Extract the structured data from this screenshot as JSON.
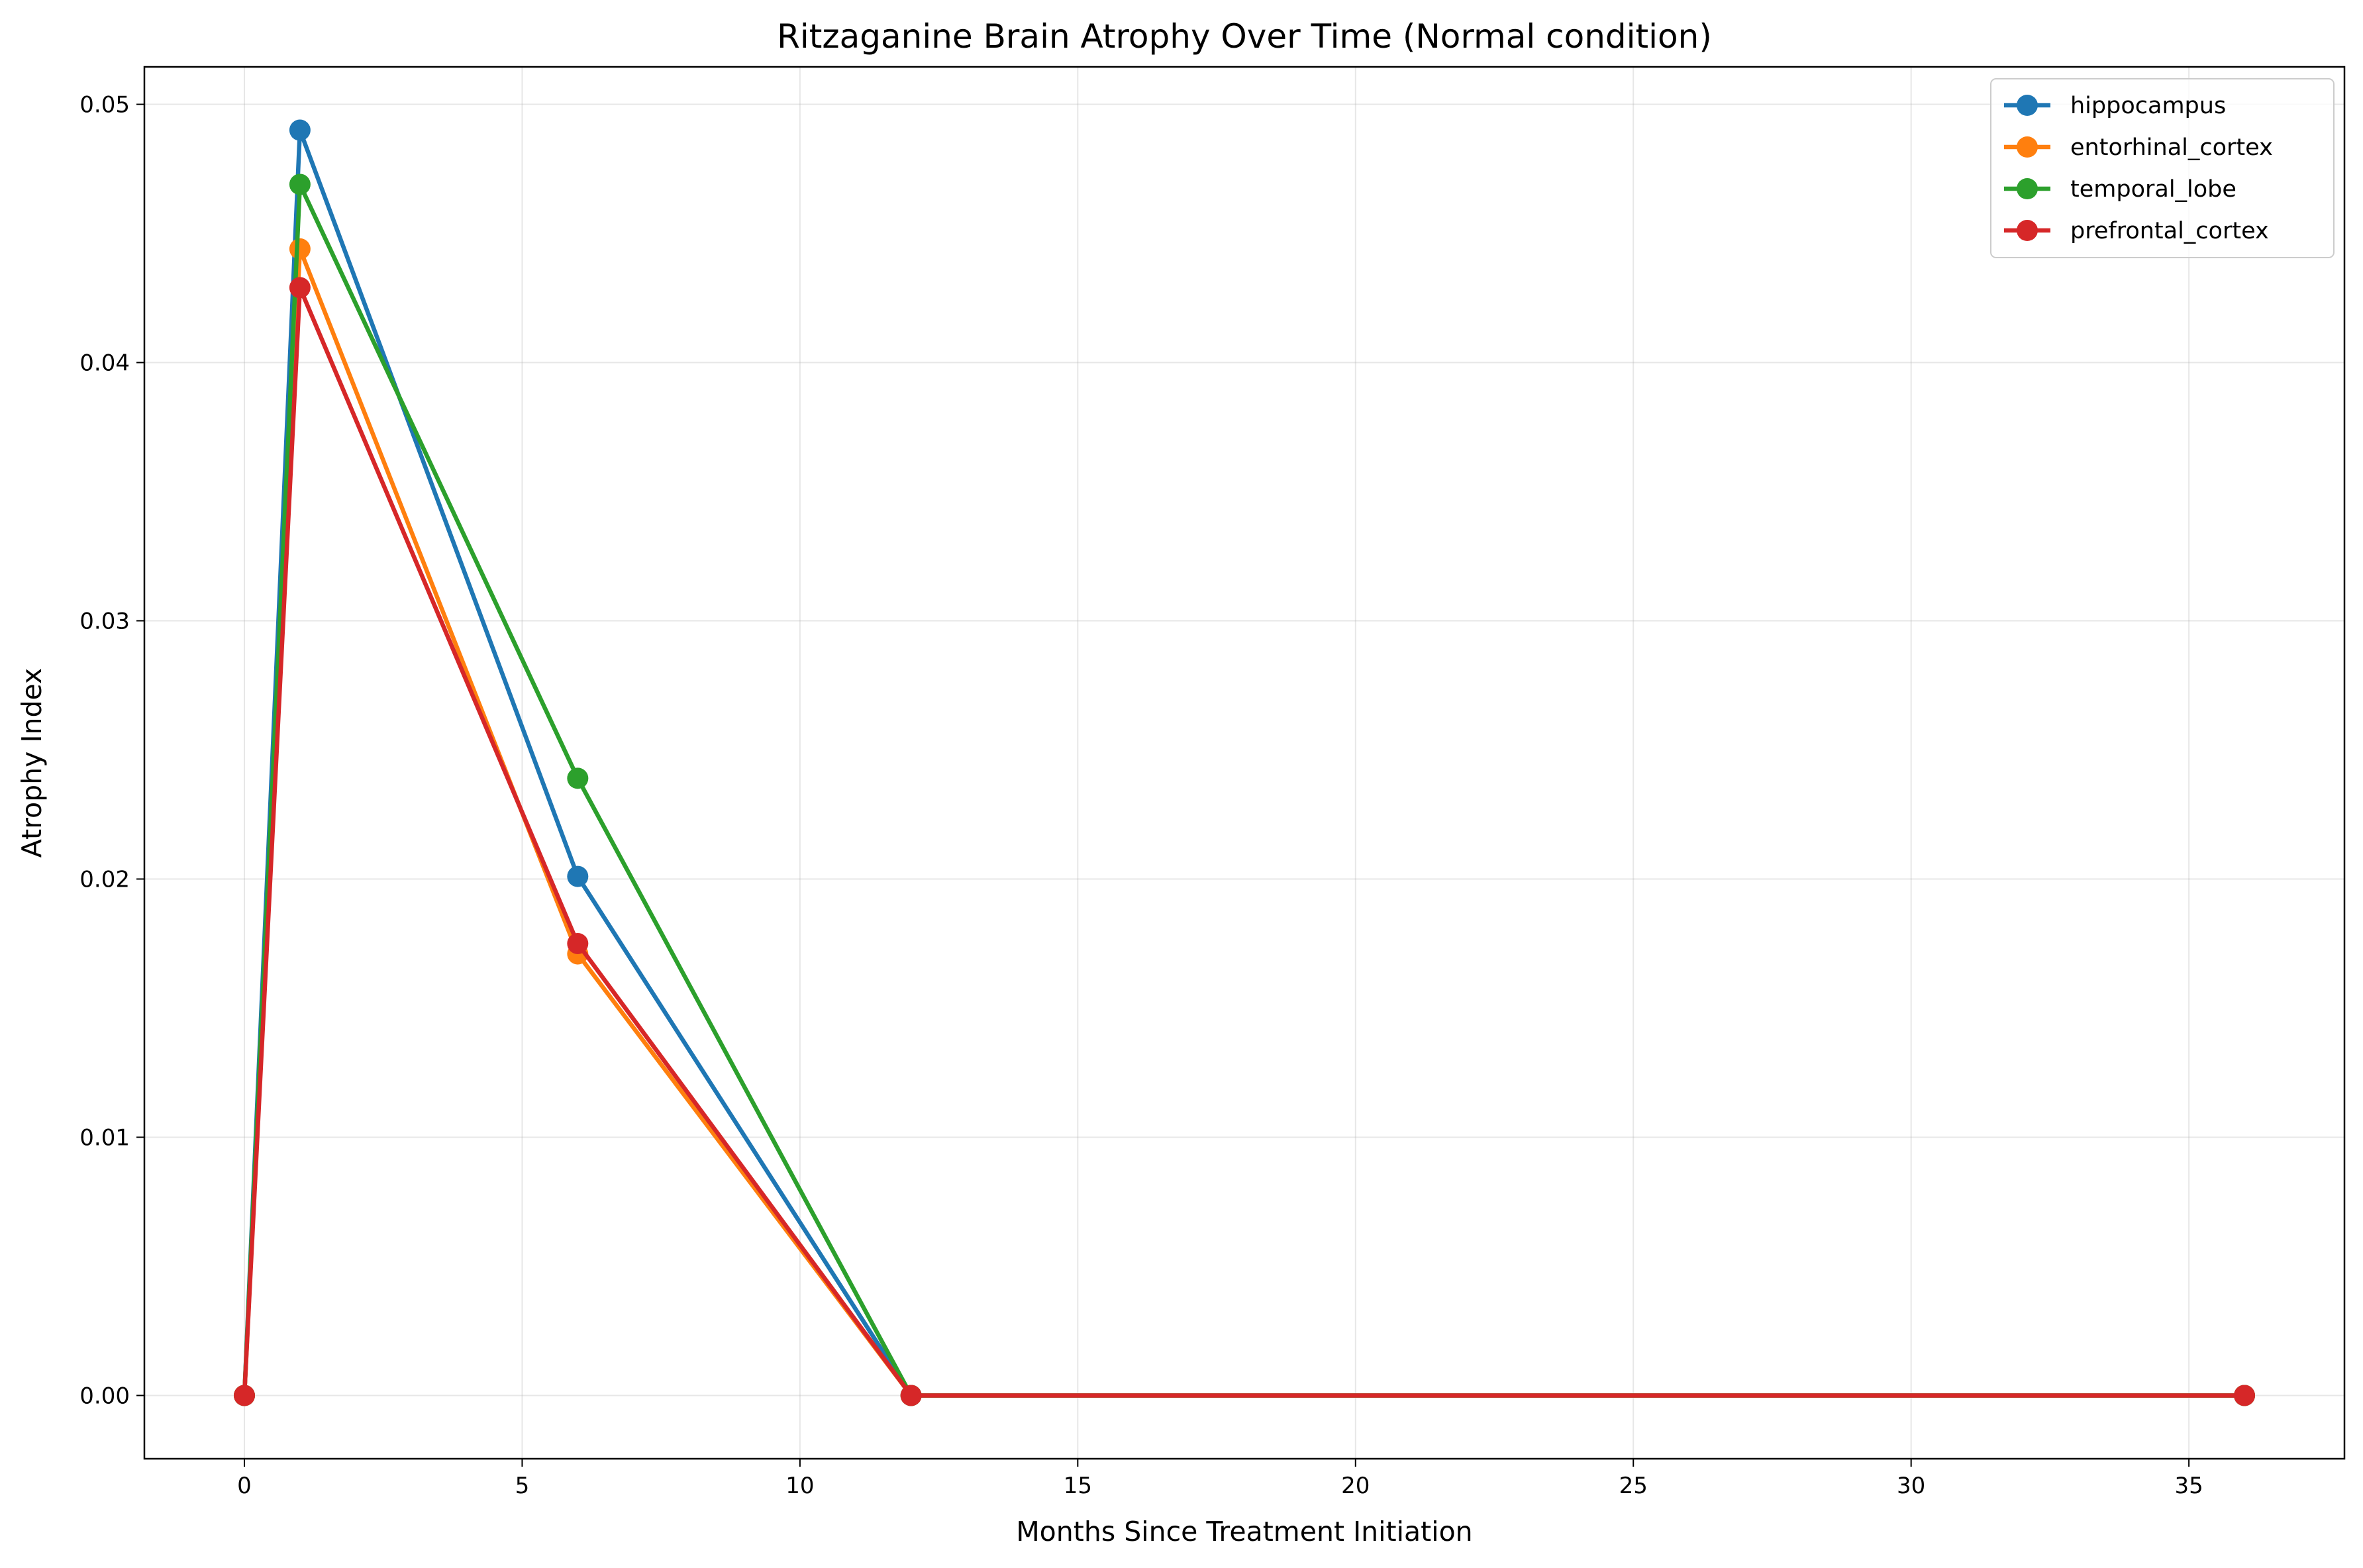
{
  "chart_data": {
    "type": "line",
    "title": "Ritzaganine Brain Atrophy Over Time (Normal condition)",
    "xlabel": "Months Since Treatment Initiation",
    "ylabel": "Atrophy Index",
    "xlim": [
      -1.8,
      37.8
    ],
    "ylim": [
      -0.00245,
      0.05145
    ],
    "xticks": [
      0,
      5,
      10,
      15,
      20,
      25,
      30,
      35
    ],
    "xtick_labels": [
      "0",
      "5",
      "10",
      "15",
      "20",
      "25",
      "30",
      "35"
    ],
    "yticks": [
      0.0,
      0.01,
      0.02,
      0.03,
      0.04,
      0.05
    ],
    "ytick_labels": [
      "0.00",
      "0.01",
      "0.02",
      "0.03",
      "0.04",
      "0.05"
    ],
    "grid": true,
    "legend_position": "top-right",
    "x": [
      0,
      1,
      6,
      12,
      36
    ],
    "series": [
      {
        "name": "hippocampus",
        "color": "#1f77b4",
        "values": [
          0.0,
          0.049,
          0.0201,
          0.0,
          0.0
        ]
      },
      {
        "name": "entorhinal_cortex",
        "color": "#ff7f0e",
        "values": [
          0.0,
          0.0444,
          0.0171,
          0.0,
          0.0
        ]
      },
      {
        "name": "temporal_lobe",
        "color": "#2ca02c",
        "values": [
          0.0,
          0.0469,
          0.0239,
          0.0,
          0.0
        ]
      },
      {
        "name": "prefrontal_cortex",
        "color": "#d62728",
        "values": [
          0.0,
          0.0429,
          0.0175,
          0.0,
          0.0
        ]
      }
    ]
  }
}
